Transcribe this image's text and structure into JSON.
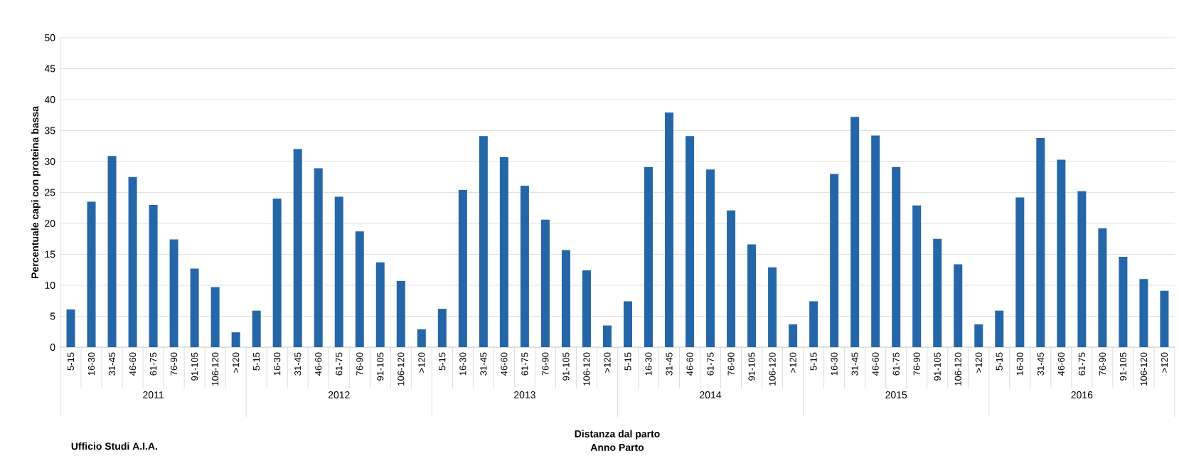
{
  "chart_data": {
    "type": "bar",
    "categories": [
      "5-15",
      "16-30",
      "31-45",
      "46-60",
      "61-75",
      "76-90",
      "91-105",
      "106-120",
      ">120",
      "5-15",
      "16-30",
      "31-45",
      "46-60",
      "61-75",
      "76-90",
      "91-105",
      "106-120",
      ">120",
      "5-15",
      "16-30",
      "31-45",
      "46-60",
      "61-75",
      "76-90",
      "91-105",
      "106-120",
      ">120",
      "5-15",
      "16-30",
      "31-45",
      "46-60",
      "61-75",
      "76-90",
      "91-105",
      "106-120",
      ">120",
      "5-15",
      "16-30",
      "31-45",
      "46-60",
      "61-75",
      "76-90",
      "91-105",
      "106-120",
      ">120",
      "5-15",
      "16-30",
      "31-45",
      "46-60",
      "61-75",
      "76-90",
      "91-105",
      "106-120",
      ">120"
    ],
    "values": [
      6.1,
      23.5,
      30.9,
      27.5,
      23.0,
      17.4,
      12.7,
      9.7,
      2.4,
      5.9,
      24.0,
      32.0,
      28.9,
      24.3,
      18.7,
      13.7,
      10.7,
      2.9,
      6.2,
      25.4,
      34.1,
      30.7,
      26.1,
      20.6,
      15.7,
      12.4,
      3.5,
      7.4,
      29.1,
      37.9,
      34.1,
      28.7,
      22.1,
      16.6,
      12.9,
      3.7,
      7.4,
      28.0,
      37.2,
      34.2,
      29.1,
      22.9,
      17.5,
      13.4,
      3.7,
      5.9,
      24.2,
      33.8,
      30.3,
      25.2,
      19.2,
      14.6,
      11.0,
      9.1
    ],
    "color": "#2566a8",
    "ylabel": "Percentuale capi con proteina bassa",
    "xlabel": "Distanza dal parto",
    "annotations": [
      "2011",
      "2012",
      "2013",
      "2014",
      "2015",
      "2016",
      "Anno Parto",
      "Ufficio Studi A.I.A."
    ],
    "ylim": [
      0,
      50
    ],
    "yticks": [
      0,
      5,
      10,
      15,
      20,
      25,
      30,
      35,
      40,
      45,
      50
    ],
    "grid": "y"
  }
}
